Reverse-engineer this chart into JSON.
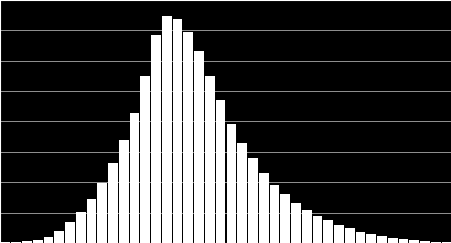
{
  "values": [
    1,
    1,
    3,
    6,
    12,
    22,
    38,
    58,
    82,
    112,
    148,
    190,
    240,
    310,
    385,
    420,
    415,
    390,
    355,
    310,
    265,
    220,
    185,
    158,
    130,
    108,
    90,
    75,
    62,
    50,
    42,
    34,
    27,
    21,
    17,
    13,
    10,
    7,
    5,
    3,
    2,
    1
  ],
  "bar_color": "#ffffff",
  "bg_color": "#000000",
  "grid_color": "#aaaaaa",
  "ylim": [
    0,
    450
  ],
  "n_gridlines": 8,
  "border_color": "#ffffff"
}
